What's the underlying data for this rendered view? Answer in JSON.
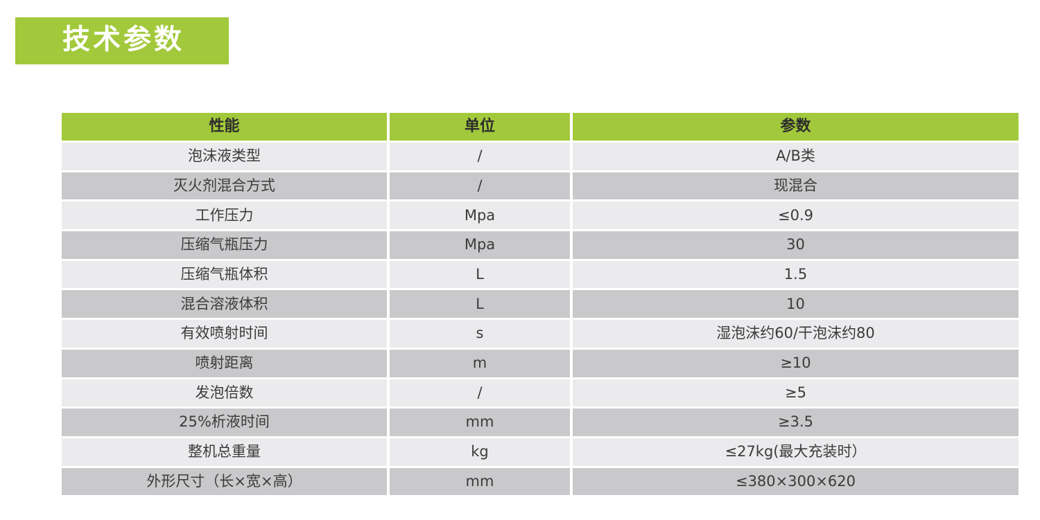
{
  "page_title": {
    "label": "技术参数"
  },
  "colors": {
    "green": "#a2c93b",
    "row_light": "#ebebed",
    "row_dark": "#c9c9cb",
    "banner_text": "#ffffff",
    "header_text": "#2d2d2d",
    "body_text": "#3b3b3b"
  },
  "table": {
    "columns": [
      {
        "label": "性能"
      },
      {
        "label": "单位"
      },
      {
        "label": "参数"
      }
    ],
    "rows": [
      {
        "property": "泡沫液类型",
        "unit": "/",
        "value": "A/B类"
      },
      {
        "property": "灭火剂混合方式",
        "unit": "/",
        "value": "现混合"
      },
      {
        "property": "工作压力",
        "unit": "Mpa",
        "value": "≤0.9"
      },
      {
        "property": "压缩气瓶压力",
        "unit": "Mpa",
        "value": "30"
      },
      {
        "property": "压缩气瓶体积",
        "unit": "L",
        "value": "1.5"
      },
      {
        "property": "混合溶液体积",
        "unit": "L",
        "value": "10"
      },
      {
        "property": "有效喷射时间",
        "unit": "s",
        "value": "湿泡沫约60/干泡沫约80"
      },
      {
        "property": "喷射距离",
        "unit": "m",
        "value": "≥10"
      },
      {
        "property": "发泡倍数",
        "unit": "/",
        "value": "≥5"
      },
      {
        "property": "25%析液时间",
        "unit": "mm",
        "value": "≥3.5"
      },
      {
        "property": "整机总重量",
        "unit": "kg",
        "value": "≤27kg(最大充装时）"
      },
      {
        "property": "外形尺寸（长×宽×高）",
        "unit": "mm",
        "value": "≤380×300×620"
      }
    ]
  }
}
